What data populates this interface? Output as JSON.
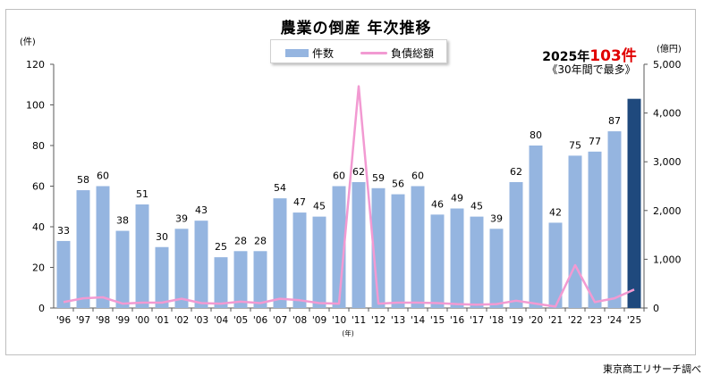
{
  "chart_data": {
    "type": "bar",
    "title": "農業の倒産 年次推移",
    "categories": [
      "'96",
      "'97",
      "'98",
      "'99",
      "'00",
      "'01",
      "'02",
      "'03",
      "'04",
      "'05",
      "'06",
      "'07",
      "'08",
      "'09",
      "'10",
      "'11",
      "'12",
      "'13",
      "'14",
      "'15",
      "'16",
      "'17",
      "'18",
      "'19",
      "'20",
      "'21",
      "'22",
      "'23",
      "'24",
      "'25"
    ],
    "x_unit": "(年)",
    "series": [
      {
        "name": "件数",
        "type": "bar",
        "axis": "left",
        "color": "#95b5e0",
        "highlight_color": "#1f497d",
        "values": [
          33,
          58,
          60,
          38,
          51,
          30,
          39,
          43,
          25,
          28,
          28,
          54,
          47,
          45,
          60,
          62,
          59,
          56,
          60,
          46,
          49,
          45,
          39,
          62,
          80,
          42,
          75,
          77,
          87,
          103
        ]
      },
      {
        "name": "負債総額",
        "type": "line",
        "axis": "right",
        "color": "#f29ad2",
        "values": [
          120,
          200,
          220,
          90,
          110,
          110,
          190,
          100,
          90,
          130,
          100,
          190,
          160,
          100,
          90,
          4550,
          90,
          110,
          110,
          100,
          80,
          70,
          80,
          150,
          90,
          30,
          880,
          120,
          200,
          380
        ]
      }
    ],
    "left_axis": {
      "unit": "(件)",
      "ylim": [
        0,
        120
      ],
      "ticks": [
        "0",
        "20",
        "40",
        "60",
        "80",
        "100",
        "120"
      ]
    },
    "right_axis": {
      "unit": "(億円)",
      "ylim": [
        0,
        5000
      ],
      "ticks": [
        "0",
        "1,000",
        "2,000",
        "3,000",
        "4,000",
        "5,000"
      ]
    },
    "legend_position": "top-center",
    "grid": false
  },
  "annotation": {
    "year_count_prefix": "2025年",
    "year_count_value": "103件",
    "note": "《30年間で最多》"
  },
  "source": "東京商工リサーチ調べ"
}
